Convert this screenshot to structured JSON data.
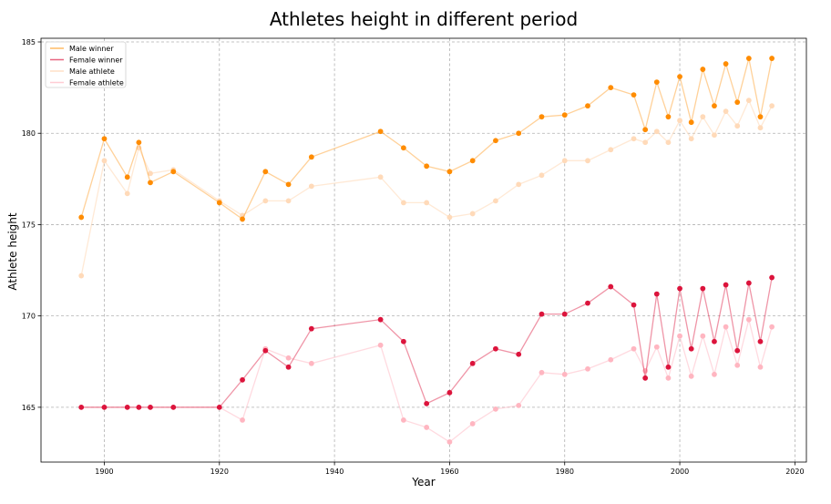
{
  "chart_data": {
    "type": "line",
    "title": "Athletes height in different period",
    "xlabel": "Year",
    "ylabel": "Athlete height",
    "xlim": [
      1889,
      2022
    ],
    "ylim": [
      162,
      185.2
    ],
    "xticks": [
      1900,
      1920,
      1940,
      1960,
      1980,
      2000,
      2020
    ],
    "yticks": [
      165,
      170,
      175,
      180,
      185
    ],
    "grid": true,
    "legend_position": "top-left",
    "series": [
      {
        "name": "Male winner",
        "color": "#ff8c00",
        "line_opacity": 0.4,
        "marker_opacity": 1,
        "x": [
          1896,
          1900,
          1904,
          1906,
          1908,
          1912,
          1920,
          1924,
          1928,
          1932,
          1936,
          1948,
          1952,
          1956,
          1960,
          1964,
          1968,
          1972,
          1976,
          1980,
          1984,
          1988,
          1992,
          1994,
          1996,
          1998,
          2000,
          2002,
          2004,
          2006,
          2008,
          2010,
          2012,
          2014,
          2016
        ],
        "y": [
          175.4,
          179.7,
          177.6,
          179.5,
          177.3,
          177.9,
          176.2,
          175.3,
          177.9,
          177.2,
          178.7,
          180.1,
          179.2,
          178.2,
          177.9,
          178.5,
          179.6,
          180.0,
          180.9,
          181.0,
          181.5,
          182.5,
          182.1,
          180.2,
          182.8,
          180.9,
          183.1,
          180.6,
          183.5,
          181.5,
          183.8,
          181.7,
          184.1,
          180.9,
          184.1
        ]
      },
      {
        "name": "Female winner",
        "color": "#dc143c",
        "line_opacity": 0.45,
        "marker_opacity": 1,
        "x": [
          1896,
          1900,
          1904,
          1906,
          1908,
          1912,
          1920,
          1924,
          1928,
          1932,
          1936,
          1948,
          1952,
          1956,
          1960,
          1964,
          1968,
          1972,
          1976,
          1980,
          1984,
          1988,
          1992,
          1994,
          1996,
          1998,
          2000,
          2002,
          2004,
          2006,
          2008,
          2010,
          2012,
          2014,
          2016
        ],
        "y": [
          165.0,
          165.0,
          165.0,
          165.0,
          165.0,
          165.0,
          165.0,
          166.5,
          168.1,
          167.2,
          169.3,
          169.8,
          168.6,
          165.2,
          165.8,
          167.4,
          168.2,
          167.9,
          170.1,
          170.1,
          170.7,
          171.6,
          170.6,
          166.6,
          171.2,
          167.2,
          171.5,
          168.2,
          171.5,
          168.6,
          171.7,
          168.1,
          171.8,
          168.6,
          172.1
        ]
      },
      {
        "name": "Male athlete",
        "color": "#ffdab9",
        "line_opacity": 0.6,
        "marker_opacity": 1,
        "x": [
          1896,
          1900,
          1904,
          1906,
          1908,
          1912,
          1920,
          1924,
          1928,
          1932,
          1936,
          1948,
          1952,
          1956,
          1960,
          1964,
          1968,
          1972,
          1976,
          1980,
          1984,
          1988,
          1992,
          1994,
          1996,
          1998,
          2000,
          2002,
          2004,
          2006,
          2008,
          2010,
          2012,
          2014,
          2016
        ],
        "y": [
          172.2,
          178.5,
          176.7,
          179.2,
          177.8,
          178.0,
          176.3,
          175.5,
          176.3,
          176.3,
          177.1,
          177.6,
          176.2,
          176.2,
          175.4,
          175.6,
          176.3,
          177.2,
          177.7,
          178.5,
          178.5,
          179.1,
          179.7,
          179.5,
          180.1,
          179.5,
          180.7,
          179.7,
          180.9,
          179.9,
          181.2,
          180.4,
          181.8,
          180.3,
          181.5
        ]
      },
      {
        "name": "Female athlete",
        "color": "#ffb6c1",
        "line_opacity": 0.5,
        "marker_opacity": 1,
        "x": [
          1896,
          1900,
          1904,
          1906,
          1908,
          1912,
          1920,
          1924,
          1928,
          1932,
          1936,
          1948,
          1952,
          1956,
          1960,
          1964,
          1968,
          1972,
          1976,
          1980,
          1984,
          1988,
          1992,
          1994,
          1996,
          1998,
          2000,
          2002,
          2004,
          2006,
          2008,
          2010,
          2012,
          2014,
          2016
        ],
        "y": [
          165.0,
          165.0,
          165.0,
          165.0,
          165.0,
          165.0,
          165.0,
          164.3,
          168.2,
          167.7,
          167.4,
          168.4,
          164.3,
          163.9,
          163.1,
          164.1,
          164.9,
          165.1,
          166.9,
          166.8,
          167.1,
          167.6,
          168.2,
          167.0,
          168.3,
          166.6,
          168.9,
          166.7,
          168.9,
          166.8,
          169.4,
          167.3,
          169.8,
          167.2,
          169.4
        ]
      }
    ]
  }
}
